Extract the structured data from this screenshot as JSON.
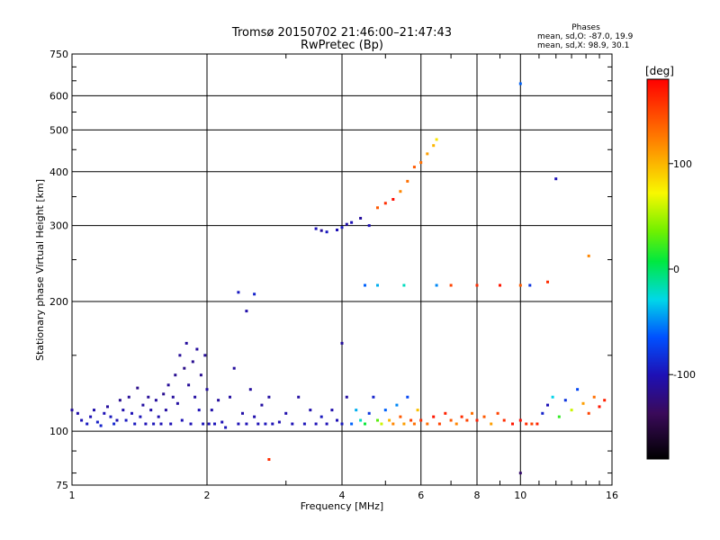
{
  "header": {
    "title_line1": "Tromsø 20150702 21:46:00–21:47:43",
    "title_line2": "RwPretec (Bp)",
    "stats_title": "Phases",
    "stats_o": "mean, sd,O: -87.0, 19.9",
    "stats_x": "mean, sd,X:  98.9, 30.1"
  },
  "colorbar": {
    "unit_label": "[deg]",
    "ticks": [
      {
        "value": 100,
        "label": "100"
      },
      {
        "value": 0,
        "label": "0"
      },
      {
        "value": -100,
        "label": "-100"
      }
    ],
    "range": [
      -180,
      180
    ]
  },
  "chart_data": {
    "type": "scatter",
    "title": "Tromsø 20150702 21:46:00–21:47:43 RwPretec (Bp)",
    "xlabel": "Frequency [MHz]",
    "ylabel": "Stationary phase Virtual Height [km]",
    "x_scale": "log",
    "y_scale": "log",
    "xlim": [
      1,
      16
    ],
    "ylim": [
      75,
      750
    ],
    "x_ticks": [
      {
        "value": 1,
        "label": "1"
      },
      {
        "value": 2,
        "label": "2"
      },
      {
        "value": 4,
        "label": "4"
      },
      {
        "value": 6,
        "label": "6"
      },
      {
        "value": 8,
        "label": "8"
      },
      {
        "value": 10,
        "label": "10"
      },
      {
        "value": 16,
        "label": "16"
      }
    ],
    "y_ticks": [
      {
        "value": 75,
        "label": "75"
      },
      {
        "value": 100,
        "label": "100"
      },
      {
        "value": 200,
        "label": "200"
      },
      {
        "value": 300,
        "label": "300"
      },
      {
        "value": 400,
        "label": "400"
      },
      {
        "value": 500,
        "label": "500"
      },
      {
        "value": 600,
        "label": "600"
      },
      {
        "value": 750,
        "label": "750"
      }
    ],
    "grid": true,
    "colorbar_quantity": "phase [deg]",
    "points": [
      [
        1.0,
        112,
        -110
      ],
      [
        1.03,
        110,
        -105
      ],
      [
        1.05,
        106,
        -100
      ],
      [
        1.08,
        104,
        -95
      ],
      [
        1.1,
        108,
        -100
      ],
      [
        1.12,
        112,
        -105
      ],
      [
        1.14,
        105,
        -92
      ],
      [
        1.16,
        103,
        -90
      ],
      [
        1.18,
        110,
        -100
      ],
      [
        1.2,
        114,
        -110
      ],
      [
        1.22,
        108,
        -96
      ],
      [
        1.24,
        104,
        -88
      ],
      [
        1.26,
        106,
        -102
      ],
      [
        1.28,
        118,
        -115
      ],
      [
        1.3,
        112,
        -104
      ],
      [
        1.32,
        106,
        -95
      ],
      [
        1.34,
        120,
        -112
      ],
      [
        1.36,
        110,
        -100
      ],
      [
        1.38,
        104,
        -96
      ],
      [
        1.4,
        126,
        -118
      ],
      [
        1.42,
        108,
        -98
      ],
      [
        1.44,
        115,
        -108
      ],
      [
        1.46,
        104,
        -100
      ],
      [
        1.48,
        120,
        -112
      ],
      [
        1.5,
        112,
        -106
      ],
      [
        1.52,
        104,
        -98
      ],
      [
        1.54,
        118,
        -110
      ],
      [
        1.56,
        108,
        -103
      ],
      [
        1.58,
        104,
        -100
      ],
      [
        1.6,
        122,
        -115
      ],
      [
        1.62,
        112,
        -108
      ],
      [
        1.64,
        128,
        -112
      ],
      [
        1.66,
        104,
        -100
      ],
      [
        1.68,
        120,
        -110
      ],
      [
        1.7,
        135,
        -115
      ],
      [
        1.72,
        116,
        -108
      ],
      [
        1.74,
        150,
        -112
      ],
      [
        1.76,
        106,
        -100
      ],
      [
        1.78,
        140,
        -118
      ],
      [
        1.8,
        160,
        -110
      ],
      [
        1.82,
        128,
        -112
      ],
      [
        1.84,
        104,
        -100
      ],
      [
        1.86,
        145,
        -115
      ],
      [
        1.88,
        120,
        -108
      ],
      [
        1.9,
        155,
        -110
      ],
      [
        1.92,
        112,
        -100
      ],
      [
        1.94,
        135,
        -115
      ],
      [
        1.96,
        104,
        -98
      ],
      [
        1.98,
        150,
        -112
      ],
      [
        2.0,
        125,
        -108
      ],
      [
        2.02,
        104,
        -100
      ],
      [
        2.05,
        112,
        -105
      ],
      [
        2.08,
        104,
        -98
      ],
      [
        2.12,
        118,
        -110
      ],
      [
        2.16,
        105,
        -100
      ],
      [
        2.2,
        102,
        -98
      ],
      [
        2.25,
        120,
        -108
      ],
      [
        2.3,
        140,
        -110
      ],
      [
        2.35,
        104,
        -100
      ],
      [
        2.4,
        110,
        -106
      ],
      [
        2.45,
        104,
        -100
      ],
      [
        2.5,
        125,
        -110
      ],
      [
        2.55,
        108,
        -104
      ],
      [
        2.6,
        104,
        -100
      ],
      [
        2.65,
        115,
        -108
      ],
      [
        2.7,
        104,
        -98
      ],
      [
        2.75,
        120,
        -108
      ],
      [
        2.8,
        104,
        -100
      ],
      [
        2.9,
        105,
        -102
      ],
      [
        3.0,
        110,
        -104
      ],
      [
        3.1,
        104,
        -100
      ],
      [
        3.2,
        120,
        -108
      ],
      [
        3.3,
        104,
        -98
      ],
      [
        3.4,
        112,
        -104
      ],
      [
        3.5,
        104,
        -100
      ],
      [
        3.6,
        108,
        -96
      ],
      [
        3.7,
        104,
        -100
      ],
      [
        3.8,
        112,
        -104
      ],
      [
        3.9,
        106,
        -100
      ],
      [
        4.0,
        104,
        -96
      ],
      [
        4.0,
        160,
        -110
      ],
      [
        4.1,
        120,
        -108
      ],
      [
        4.2,
        104,
        -60
      ],
      [
        4.3,
        112,
        -40
      ],
      [
        4.4,
        106,
        -20
      ],
      [
        4.5,
        104,
        10
      ],
      [
        4.6,
        110,
        -80
      ],
      [
        4.7,
        120,
        -90
      ],
      [
        4.8,
        106,
        30
      ],
      [
        4.9,
        104,
        60
      ],
      [
        5.0,
        112,
        -60
      ],
      [
        5.1,
        106,
        100
      ],
      [
        5.2,
        104,
        120
      ],
      [
        5.3,
        115,
        -50
      ],
      [
        5.4,
        108,
        140
      ],
      [
        5.5,
        104,
        110
      ],
      [
        5.6,
        120,
        -70
      ],
      [
        5.7,
        106,
        150
      ],
      [
        5.8,
        104,
        130
      ],
      [
        5.9,
        112,
        95
      ],
      [
        6.0,
        106,
        160
      ],
      [
        6.2,
        104,
        130
      ],
      [
        6.4,
        108,
        170
      ],
      [
        6.6,
        104,
        150
      ],
      [
        6.8,
        110,
        165
      ],
      [
        7.0,
        106,
        140
      ],
      [
        7.2,
        104,
        120
      ],
      [
        7.4,
        108,
        160
      ],
      [
        7.6,
        106,
        150
      ],
      [
        7.8,
        110,
        130
      ],
      [
        8.0,
        106,
        165
      ],
      [
        8.3,
        108,
        140
      ],
      [
        8.6,
        104,
        110
      ],
      [
        8.9,
        110,
        150
      ],
      [
        9.2,
        106,
        160
      ],
      [
        9.6,
        104,
        170
      ],
      [
        10.0,
        106,
        175
      ],
      [
        10.3,
        104,
        160
      ],
      [
        10.6,
        104,
        150
      ],
      [
        10.9,
        104,
        165
      ],
      [
        11.2,
        110,
        -90
      ],
      [
        11.5,
        115,
        -100
      ],
      [
        11.8,
        120,
        -30
      ],
      [
        12.2,
        108,
        20
      ],
      [
        12.6,
        118,
        -80
      ],
      [
        13.0,
        112,
        60
      ],
      [
        13.4,
        125,
        -70
      ],
      [
        13.8,
        116,
        110
      ],
      [
        14.2,
        110,
        150
      ],
      [
        14.6,
        120,
        130
      ],
      [
        15.0,
        114,
        170
      ],
      [
        15.4,
        118,
        165
      ],
      [
        2.35,
        210,
        -95
      ],
      [
        2.45,
        190,
        -105
      ],
      [
        2.55,
        208,
        -90
      ],
      [
        2.75,
        86,
        160
      ],
      [
        3.5,
        295,
        -100
      ],
      [
        3.6,
        292,
        -110
      ],
      [
        3.7,
        290,
        -95
      ],
      [
        3.9,
        293,
        -100
      ],
      [
        4.0,
        297,
        -95
      ],
      [
        4.1,
        302,
        -105
      ],
      [
        4.2,
        305,
        -100
      ],
      [
        4.4,
        312,
        -110
      ],
      [
        4.6,
        300,
        -100
      ],
      [
        4.8,
        330,
        140
      ],
      [
        5.0,
        338,
        160
      ],
      [
        5.2,
        345,
        175
      ],
      [
        5.4,
        360,
        120
      ],
      [
        5.6,
        380,
        130
      ],
      [
        5.8,
        410,
        140
      ],
      [
        6.0,
        420,
        130
      ],
      [
        6.2,
        440,
        110
      ],
      [
        6.4,
        460,
        100
      ],
      [
        6.5,
        475,
        80
      ],
      [
        4.5,
        218,
        -60
      ],
      [
        4.8,
        218,
        -40
      ],
      [
        5.5,
        218,
        -20
      ],
      [
        6.5,
        218,
        -50
      ],
      [
        7.0,
        218,
        150
      ],
      [
        8.0,
        218,
        160
      ],
      [
        9.0,
        218,
        170
      ],
      [
        10.0,
        218,
        140
      ],
      [
        10.5,
        218,
        -80
      ],
      [
        11.5,
        222,
        160
      ],
      [
        10.0,
        80,
        -130
      ],
      [
        10.0,
        640,
        -60
      ],
      [
        12.0,
        385,
        -100
      ],
      [
        14.2,
        255,
        120
      ]
    ]
  }
}
